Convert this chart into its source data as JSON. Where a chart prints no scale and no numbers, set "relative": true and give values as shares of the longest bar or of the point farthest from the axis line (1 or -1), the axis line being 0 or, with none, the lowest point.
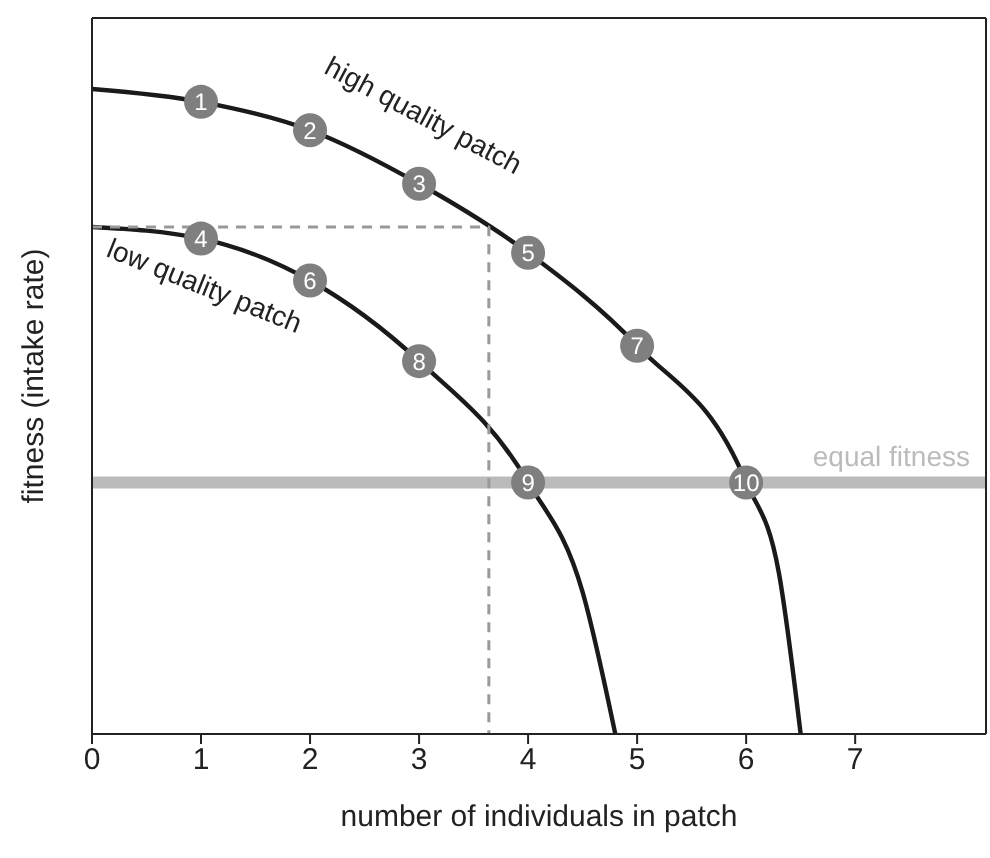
{
  "chart_data": {
    "type": "line",
    "relative": true,
    "xlabel": "number of individuals in patch",
    "ylabel": "fitness (intake rate)",
    "xlim": [
      0,
      8.2
    ],
    "xticks": [
      0,
      1,
      2,
      3,
      4,
      5,
      6,
      7
    ],
    "grid": false,
    "marker": "none",
    "series": [
      {
        "name": "high quality patch",
        "color": "#1a1a1a",
        "x": [
          0,
          1,
          2,
          3,
          4,
          5,
          6,
          6.3,
          6.5
        ],
        "values": [
          1.0,
          0.98,
          0.936,
          0.853,
          0.746,
          0.602,
          0.39,
          0.25,
          0
        ]
      },
      {
        "name": "low quality patch",
        "color": "#1a1a1a",
        "x": [
          0,
          1,
          2,
          3,
          4,
          4.5,
          4.8
        ],
        "values": [
          0.786,
          0.768,
          0.703,
          0.578,
          0.39,
          0.22,
          0
        ]
      },
      {
        "color": "#999999",
        "line_style": "dashed",
        "x": [
          0,
          3.64,
          3.64
        ],
        "values": [
          0.786,
          0.786,
          0
        ]
      },
      {
        "type": "scatter",
        "color": "#7f7f7f",
        "marker": "circle",
        "x": [
          1,
          2,
          3,
          1,
          4,
          2,
          5,
          3,
          4,
          6
        ],
        "values": [
          0.98,
          0.936,
          0.853,
          0.768,
          0.746,
          0.703,
          0.602,
          0.578,
          0.39,
          0.39
        ]
      }
    ],
    "annotations": [
      {
        "text": "1",
        "x": 1,
        "y": 0.98
      },
      {
        "text": "2",
        "x": 2,
        "y": 0.936
      },
      {
        "text": "3",
        "x": 3,
        "y": 0.853
      },
      {
        "text": "4",
        "x": 1,
        "y": 0.768
      },
      {
        "text": "5",
        "x": 4,
        "y": 0.746
      },
      {
        "text": "6",
        "x": 2,
        "y": 0.703
      },
      {
        "text": "7",
        "x": 5,
        "y": 0.602
      },
      {
        "text": "8",
        "x": 3,
        "y": 0.578
      },
      {
        "text": "9",
        "x": 4,
        "y": 0.39
      },
      {
        "text": "10",
        "x": 6,
        "y": 0.39
      }
    ],
    "ref_lines": [
      {
        "axis": "y",
        "value": 0.39,
        "label": "equal fitness",
        "color": "#bbbbbb"
      }
    ]
  }
}
